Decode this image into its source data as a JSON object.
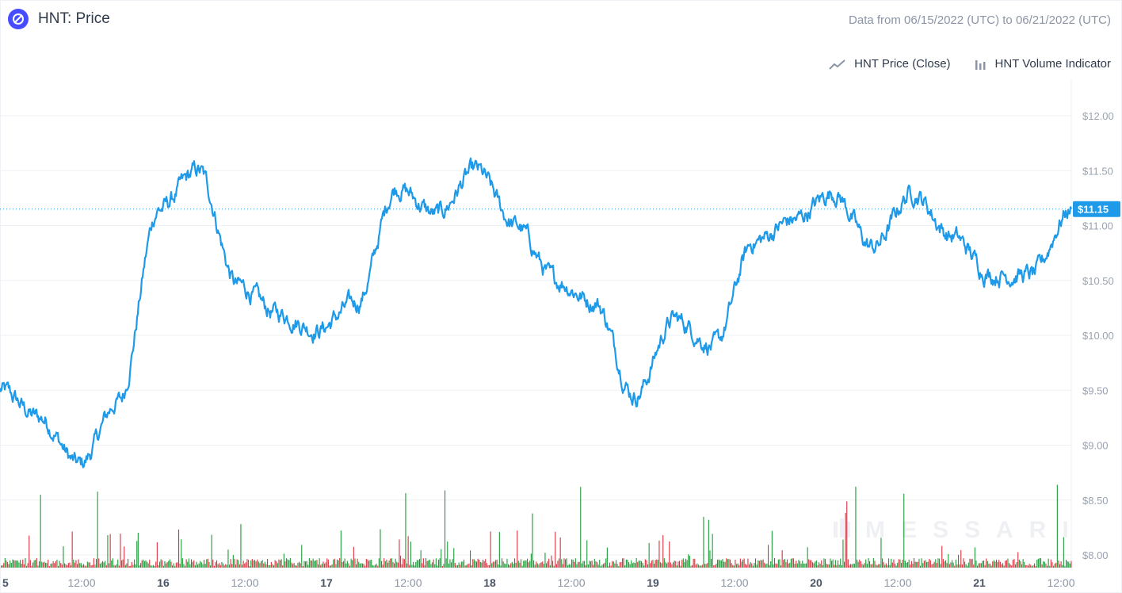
{
  "header": {
    "title": "HNT: Price",
    "date_range": "Data from 06/15/2022 (UTC) to 06/21/2022 (UTC)"
  },
  "legend": {
    "price_label": "HNT Price (Close)",
    "volume_label": "HNT Volume Indicator"
  },
  "watermark": "MESSARI",
  "colors": {
    "price_line": "#1e9ae8",
    "volume_up": "#1f9a3a",
    "volume_down": "#d9323f",
    "brand": "#474dff",
    "grid": "#eef1f5"
  },
  "chart_data": {
    "type": "line",
    "title": "HNT: Price",
    "series": [
      {
        "name": "HNT Price (Close)",
        "x": [
          "15 00:00",
          "15 06:00",
          "15 12:00",
          "15 18:00",
          "16 00:00",
          "16 06:00",
          "16 12:00",
          "16 18:00",
          "17 00:00",
          "17 06:00",
          "17 12:00",
          "17 18:00",
          "18 00:00",
          "18 06:00",
          "18 12:00",
          "18 18:00",
          "19 00:00",
          "19 06:00",
          "19 12:00",
          "19 18:00",
          "20 00:00",
          "20 06:00",
          "20 12:00",
          "20 18:00",
          "21 00:00",
          "21 06:00",
          "21 12:00",
          "21 12:15"
        ],
        "values": [
          9.5,
          9.25,
          8.82,
          9.4,
          11.15,
          11.5,
          10.45,
          10.2,
          10.05,
          10.3,
          11.35,
          11.1,
          11.5,
          11.0,
          10.5,
          10.3,
          9.45,
          10.15,
          9.9,
          10.85,
          11.05,
          11.3,
          10.8,
          11.3,
          10.9,
          10.55,
          10.55,
          11.15
        ]
      }
    ],
    "x_tick_labels": [
      "5",
      "12:00",
      "16",
      "12:00",
      "17",
      "12:00",
      "18",
      "12:00",
      "19",
      "12:00",
      "20",
      "12:00",
      "21",
      "12:00"
    ],
    "y_tick_labels": [
      "$12.00",
      "$11.50",
      "$11.00",
      "$10.50",
      "$10.00",
      "$9.50",
      "$9.00",
      "$8.50",
      "$8.00"
    ],
    "ylim": [
      8.0,
      12.0
    ],
    "current_price_label": "$11.15",
    "current_price": 11.15,
    "volume_indicator": "bars along bottom, green = up, red = down",
    "grid": true,
    "legend_position": "top-right"
  }
}
